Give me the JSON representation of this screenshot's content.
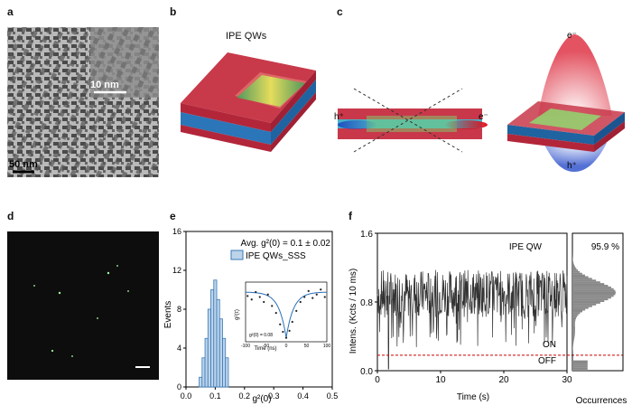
{
  "panels": {
    "a": {
      "letter": "a",
      "scale_inset": "10 nm",
      "scale_main": "50 nm"
    },
    "b": {
      "letter": "b",
      "title": "IPE QWs"
    },
    "c": {
      "letter": "c",
      "electron": "e⁻",
      "hole": "h⁺",
      "electron2": "e⁻",
      "hole2": "h⁺"
    },
    "d": {
      "letter": "d"
    },
    "e": {
      "letter": "e",
      "annotation": "Avg. g²(0) = 0.1 ± 0.02",
      "legend": "IPE QWs_SSS"
    },
    "f": {
      "letter": "f",
      "tag": "IPE QW",
      "percent": "95.9 %",
      "on_label": "ON",
      "off_label": "OFF"
    }
  },
  "chart_data": [
    {
      "type": "bar",
      "panel": "e",
      "xlabel": "g²(0)",
      "ylabel": "Events",
      "xlim": [
        0.0,
        0.5
      ],
      "ylim": [
        0,
        16
      ],
      "xticks": [
        "0.0",
        "0.1",
        "0.2",
        "0.3",
        "0.4",
        "0.5"
      ],
      "yticks": [
        "0",
        "4",
        "8",
        "12",
        "16"
      ],
      "bin_centers": [
        0.05,
        0.06,
        0.07,
        0.08,
        0.09,
        0.1,
        0.11,
        0.12,
        0.13,
        0.14
      ],
      "values": [
        1,
        3,
        5,
        8,
        10,
        11,
        9,
        7,
        5,
        3
      ],
      "series": [
        {
          "name": "IPE QWs_SSS",
          "values": [
            1,
            3,
            5,
            8,
            10,
            11,
            9,
            7,
            5,
            3
          ]
        }
      ],
      "inset": {
        "type": "scatter",
        "xlabel": "Time (ns)",
        "ylabel": "g²(τ)",
        "xticks": [
          "-100",
          "-50",
          "0",
          "50",
          "100"
        ],
        "annotation": "g²(0) = 0.08",
        "points": [
          [
            -95,
            0.92
          ],
          [
            -85,
            0.85
          ],
          [
            -75,
            1.0
          ],
          [
            -65,
            0.9
          ],
          [
            -55,
            0.8
          ],
          [
            -45,
            0.95
          ],
          [
            -35,
            0.72
          ],
          [
            -25,
            0.58
          ],
          [
            -15,
            0.35
          ],
          [
            -8,
            0.2
          ],
          [
            0,
            0.08
          ],
          [
            8,
            0.22
          ],
          [
            15,
            0.4
          ],
          [
            25,
            0.62
          ],
          [
            35,
            0.8
          ],
          [
            45,
            0.9
          ],
          [
            55,
            1.02
          ],
          [
            65,
            0.88
          ],
          [
            75,
            0.95
          ],
          [
            85,
            1.05
          ],
          [
            95,
            0.9
          ]
        ]
      }
    },
    {
      "type": "line",
      "panel": "f",
      "xlabel": "Time (s)",
      "ylabel": "Intens. (Kcts / 10 ms)",
      "xlim": [
        0,
        30
      ],
      "ylim": [
        0.0,
        1.6
      ],
      "xticks": [
        "0",
        "10",
        "20",
        "30"
      ],
      "yticks": [
        "0.0",
        "0.8",
        "1.6"
      ],
      "threshold": 0.18,
      "mean_level": 0.9,
      "histogram_xlabel": "Occurrences",
      "histogram_percent": "95.9 %"
    }
  ]
}
